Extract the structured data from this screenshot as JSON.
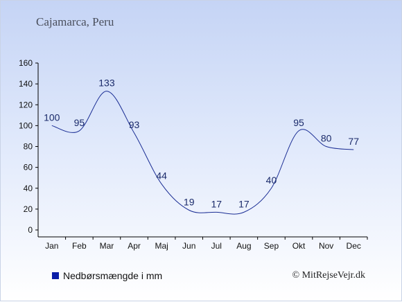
{
  "title": "Cajamarca, Peru",
  "legend_label": "Nedbørsmængde i mm",
  "credit": "© MitRejseVejr.dk",
  "colors": {
    "line": "#1a2d94",
    "legend": "#0a1ea8",
    "axis": "#000000",
    "label": "#1a2a6a"
  },
  "chart_data": {
    "type": "line",
    "categories": [
      "Jan",
      "Feb",
      "Mar",
      "Apr",
      "Maj",
      "Jun",
      "Jul",
      "Aug",
      "Sep",
      "Okt",
      "Nov",
      "Dec"
    ],
    "series": [
      {
        "name": "Nedbørsmængde i mm",
        "values": [
          100,
          95,
          133,
          93,
          44,
          19,
          17,
          17,
          40,
          95,
          80,
          77
        ]
      }
    ],
    "ylim": [
      0,
      160
    ],
    "yticks": [
      0,
      20,
      40,
      60,
      80,
      100,
      120,
      140,
      160
    ],
    "grid": false,
    "legend_position": "bottom-left"
  }
}
